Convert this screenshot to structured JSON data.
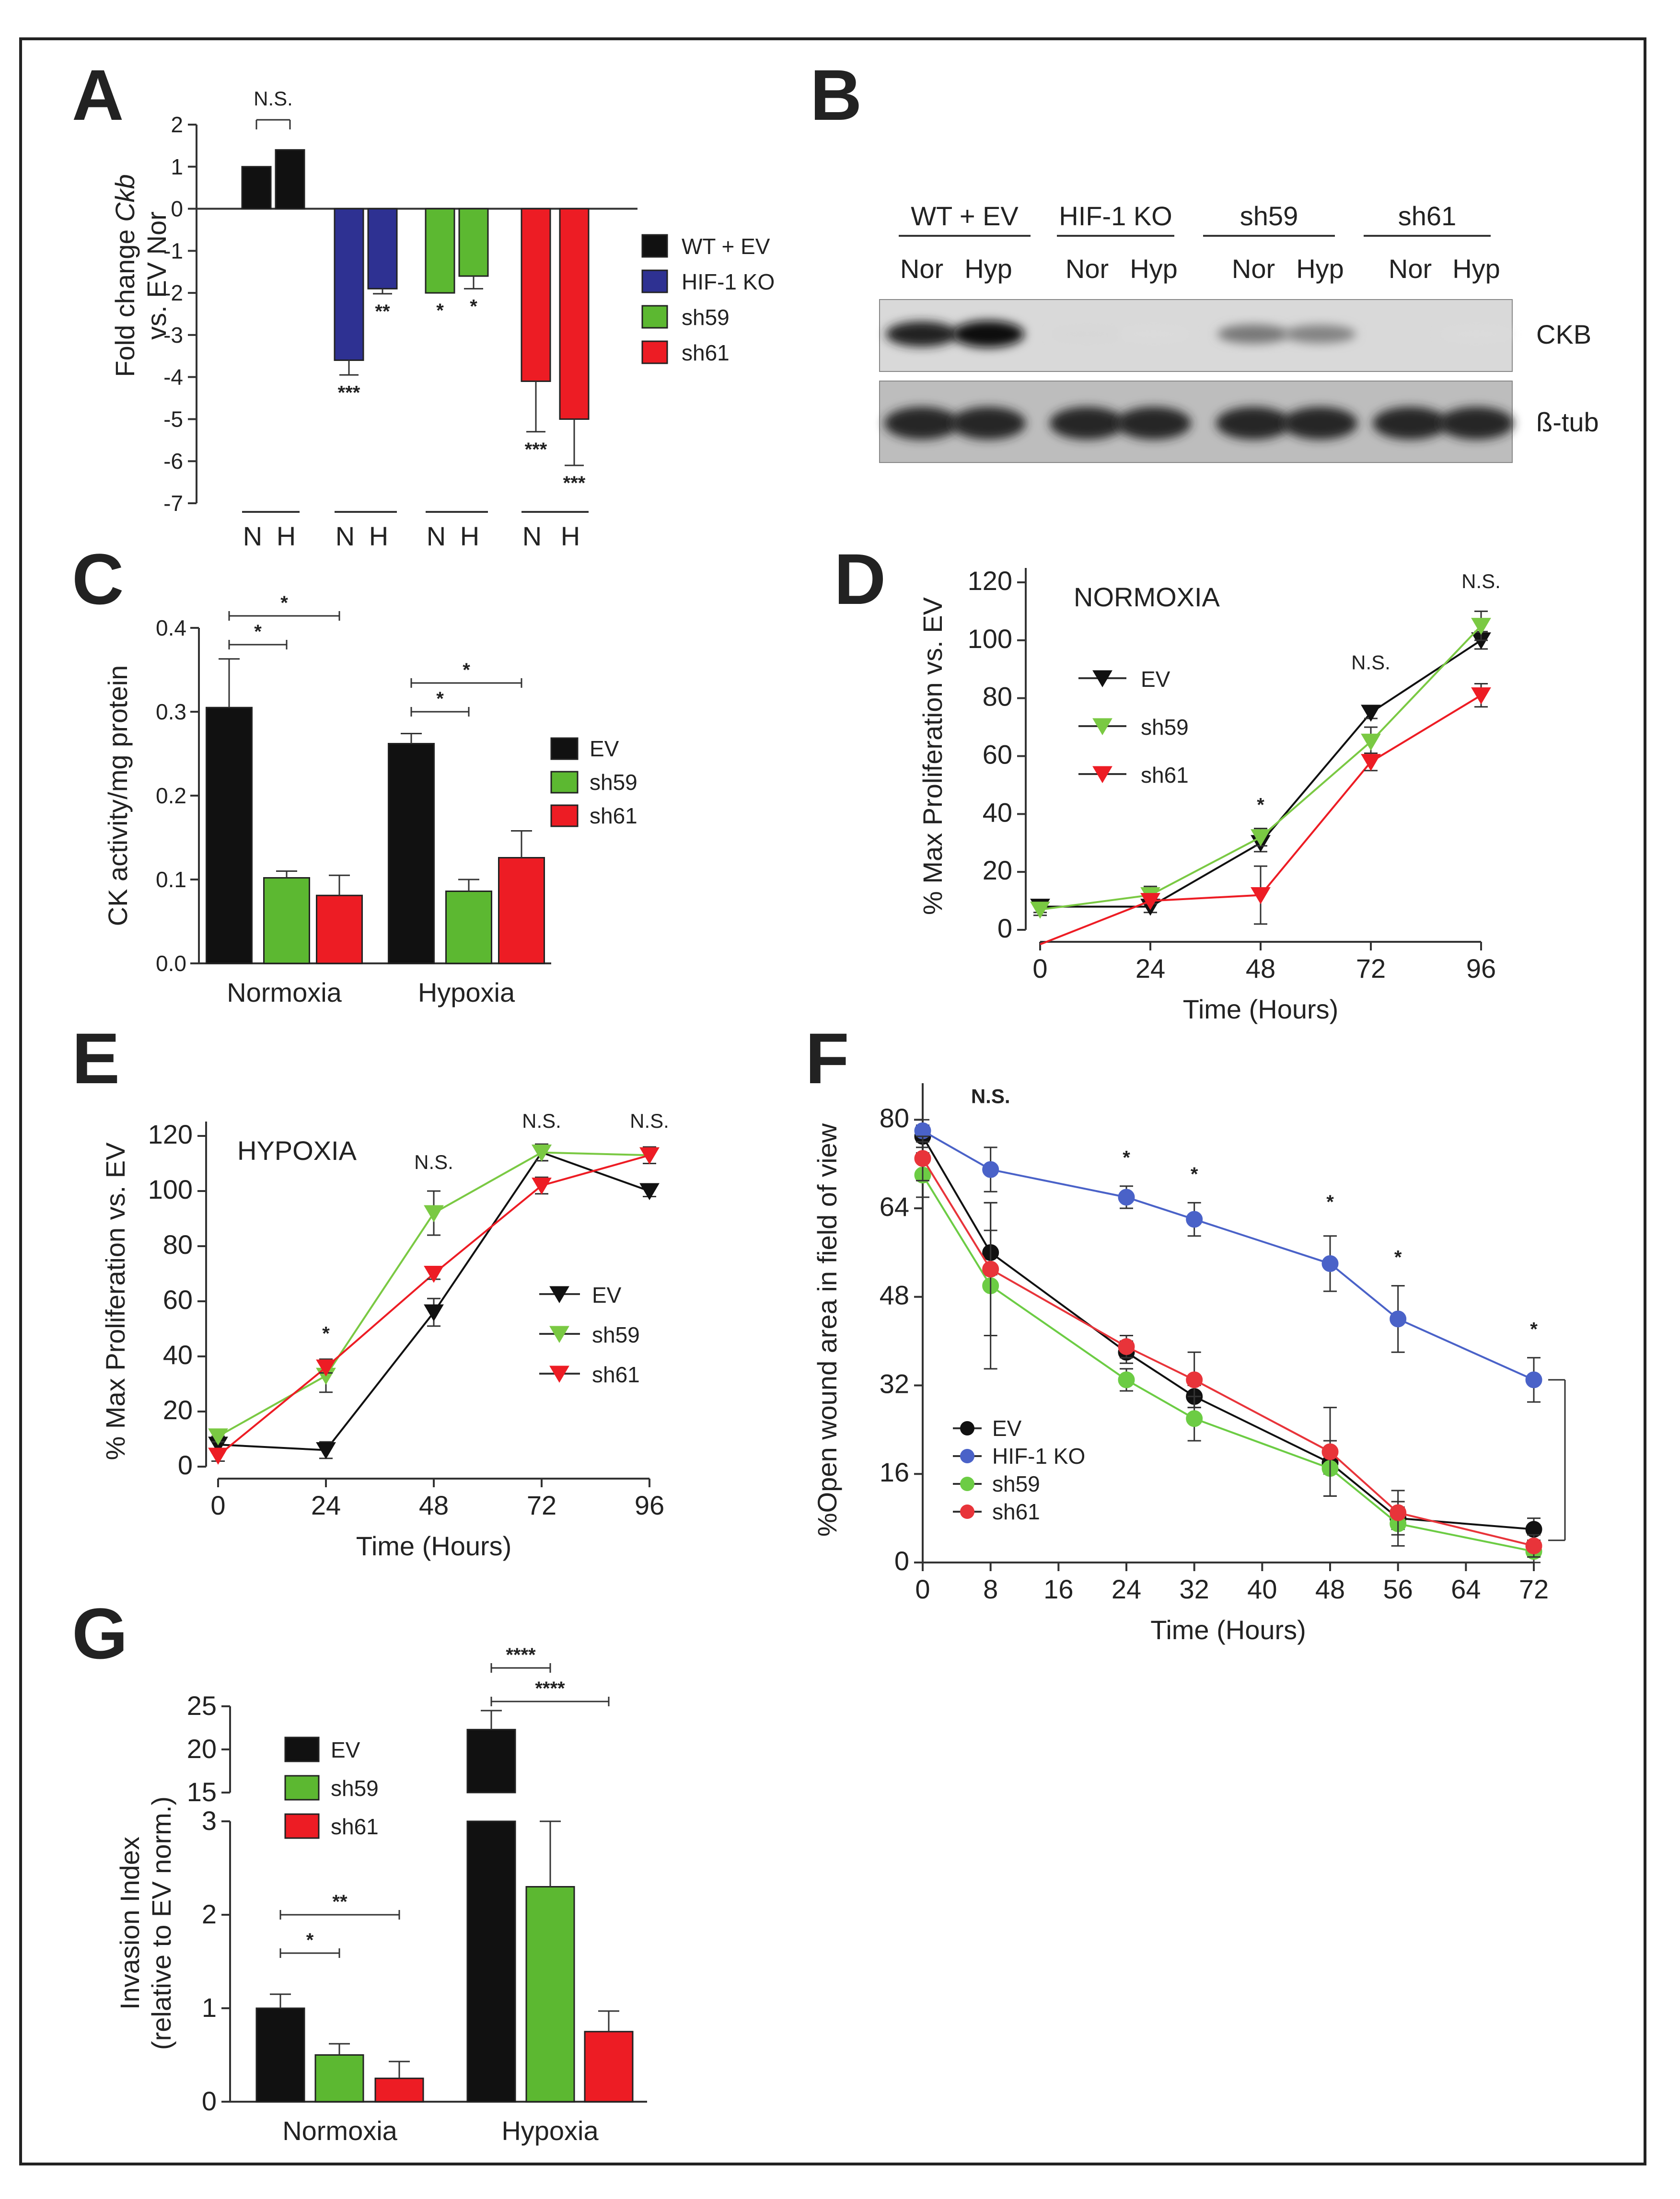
{
  "panel_labels": [
    "A",
    "B",
    "C",
    "D",
    "E",
    "F",
    "G"
  ],
  "colors": {
    "black": "#111111",
    "blue": "#2e3192",
    "green": "#5cb831",
    "red": "#ed1c24",
    "f_blue": "#4a62c8",
    "f_green": "#6ccc44",
    "f_red": "#e8343a",
    "green_light": "#7ac943"
  },
  "chart_data": [
    {
      "id": "A",
      "type": "bar",
      "ylabel": "Fold change Ckb vs. EV Nor",
      "ylabel_line1": "Fold change ",
      "ylabel_italic": "Ckb",
      "ylabel_line2": "vs. EV Nor",
      "ylim": [
        -7,
        2
      ],
      "yticks": [
        2,
        1,
        0,
        -1,
        -2,
        -3,
        -4,
        -5,
        -6,
        -7
      ],
      "categories": [
        "N",
        "H",
        "N",
        "H",
        "N",
        "H",
        "N",
        "H"
      ],
      "groups": [
        "WT + EV",
        "WT + EV",
        "HIF-1 KO",
        "HIF-1 KO",
        "sh59",
        "sh59",
        "sh61",
        "sh61"
      ],
      "values": [
        1.0,
        1.4,
        -3.6,
        -1.9,
        -2.0,
        -1.6,
        -4.1,
        -5.0
      ],
      "errors": [
        0,
        0,
        0.35,
        0.12,
        0,
        0.3,
        1.2,
        1.1
      ],
      "sig": [
        "",
        "",
        "***",
        "**",
        "*",
        "*",
        "***",
        "***"
      ],
      "annotation": "N.S.",
      "legend": [
        "WT + EV",
        "HIF-1 KO",
        "sh59",
        "sh61"
      ]
    },
    {
      "id": "B",
      "type": "table",
      "groups": [
        "WT + EV",
        "HIF-1 KO",
        "sh59",
        "sh61"
      ],
      "lanes": [
        "Nor",
        "Hyp",
        "Nor",
        "Hyp",
        "Nor",
        "Hyp",
        "Nor",
        "Hyp"
      ],
      "bands": [
        "CKB",
        "ß-tub"
      ],
      "ckb_intensity": [
        0.9,
        1.0,
        0.05,
        0.03,
        0.5,
        0.45,
        0.04,
        0.03
      ],
      "tub_intensity": [
        0.95,
        0.95,
        0.95,
        0.95,
        0.95,
        0.95,
        0.95,
        0.95
      ]
    },
    {
      "id": "C",
      "type": "bar",
      "ylabel": "CK activity/mg protein",
      "ylim": [
        0.0,
        0.4
      ],
      "yticks": [
        0.4,
        0.3,
        0.2,
        0.1,
        0.0
      ],
      "ytick_labels": [
        "0.4",
        "0.3",
        "0.2",
        "0.1",
        "0.0"
      ],
      "categories": [
        "Normoxia",
        "Hypoxia"
      ],
      "series": [
        {
          "name": "EV",
          "values": [
            0.305,
            0.262
          ],
          "errors": [
            0.058,
            0.012
          ]
        },
        {
          "name": "sh59",
          "values": [
            0.102,
            0.086
          ],
          "errors": [
            0.008,
            0.014
          ]
        },
        {
          "name": "sh61",
          "values": [
            0.081,
            0.126
          ],
          "errors": [
            0.024,
            0.032
          ]
        }
      ],
      "sig": [
        "*",
        "*",
        "*",
        "*"
      ]
    },
    {
      "id": "D",
      "type": "line",
      "title": "NORMOXIA",
      "ylabel": "% Max Proliferation vs. EV",
      "xlabel": "Time (Hours)",
      "xlim": [
        0,
        96
      ],
      "ylim": [
        0,
        120
      ],
      "x": [
        0,
        24,
        48,
        72,
        96
      ],
      "yticks": [
        0,
        20,
        40,
        60,
        80,
        100,
        120
      ],
      "series": [
        {
          "name": "EV",
          "values": [
            8,
            8,
            30,
            75,
            100
          ],
          "errors": [
            2,
            2,
            3,
            2,
            3
          ]
        },
        {
          "name": "sh59",
          "values": [
            7,
            12,
            32,
            65,
            105
          ],
          "errors": [
            2,
            3,
            3,
            5,
            5
          ]
        },
        {
          "name": "sh61",
          "values": [
            -5,
            10,
            12,
            58,
            81
          ],
          "errors": [
            0,
            0,
            10,
            3,
            4
          ]
        }
      ],
      "annotations": [
        "*",
        "N.S.",
        "N.S."
      ]
    },
    {
      "id": "E",
      "type": "line",
      "title": "HYPOXIA",
      "ylabel": "% Max Proliferation vs. EV",
      "xlabel": "Time (Hours)",
      "xlim": [
        0,
        96
      ],
      "ylim": [
        0,
        120
      ],
      "x": [
        0,
        24,
        48,
        72,
        96
      ],
      "yticks": [
        0,
        20,
        40,
        60,
        80,
        100,
        120
      ],
      "series": [
        {
          "name": "EV",
          "values": [
            8,
            6,
            56,
            114,
            100
          ],
          "errors": [
            3,
            3,
            5,
            3,
            2
          ]
        },
        {
          "name": "sh59",
          "values": [
            11,
            33,
            92,
            114,
            113
          ],
          "errors": [
            2,
            6,
            8,
            3,
            3
          ]
        },
        {
          "name": "sh61",
          "values": [
            4,
            36,
            70,
            102,
            113
          ],
          "errors": [
            2,
            2,
            2,
            3,
            3
          ]
        }
      ],
      "annotations": [
        "*",
        "N.S.",
        "N.S.",
        "N.S."
      ]
    },
    {
      "id": "F",
      "type": "line",
      "ylabel": "%Open wound area in field of view",
      "xlabel": "Time (Hours)",
      "xlim": [
        0,
        72
      ],
      "ylim": [
        0,
        84
      ],
      "x": [
        0,
        8,
        24,
        32,
        48,
        56,
        72
      ],
      "xticks": [
        0,
        8,
        16,
        24,
        32,
        40,
        48,
        56,
        64,
        72
      ],
      "yticks": [
        0,
        16,
        32,
        48,
        64,
        80
      ],
      "series": [
        {
          "name": "EV",
          "values": [
            77,
            56,
            38,
            30,
            18,
            8,
            6
          ],
          "errors": [
            2,
            4,
            2,
            2,
            2,
            2,
            2
          ]
        },
        {
          "name": "HIF-1 KO",
          "values": [
            78,
            71,
            66,
            62,
            54,
            44,
            33
          ],
          "errors": [
            2,
            4,
            2,
            3,
            5,
            6,
            4
          ]
        },
        {
          "name": "sh59",
          "values": [
            70,
            50,
            33,
            26,
            17,
            7,
            2
          ],
          "errors": [
            4,
            15,
            2,
            4,
            5,
            4,
            2
          ]
        },
        {
          "name": "sh61",
          "values": [
            73,
            53,
            39,
            33,
            20,
            9,
            3
          ],
          "errors": [
            4,
            12,
            2,
            5,
            8,
            4,
            2
          ]
        }
      ],
      "annotations": [
        "N.S.",
        "*",
        "*",
        "*",
        "*",
        "*"
      ]
    },
    {
      "id": "G",
      "type": "bar",
      "ylabel": "Invasion Index (relative to EV norm.)",
      "ylabel_line1": "Invasion Index",
      "ylabel_line2": "(relative to EV norm.)",
      "categories": [
        "Normoxia",
        "Hypoxia"
      ],
      "axis_break": {
        "lower": [
          0,
          3
        ],
        "upper": [
          15,
          25
        ]
      },
      "yticks_lower": [
        0,
        1,
        2,
        3
      ],
      "yticks_upper": [
        15,
        20,
        25
      ],
      "series": [
        {
          "name": "EV",
          "values": [
            1.0,
            22.3
          ],
          "errors": [
            0.15,
            2.2
          ]
        },
        {
          "name": "sh59",
          "values": [
            0.5,
            2.3
          ],
          "errors": [
            0.12,
            0.7
          ]
        },
        {
          "name": "sh61",
          "values": [
            0.25,
            0.75
          ],
          "errors": [
            0.18,
            0.22
          ]
        }
      ],
      "sig": [
        "*",
        "**",
        "****",
        "****"
      ]
    }
  ]
}
